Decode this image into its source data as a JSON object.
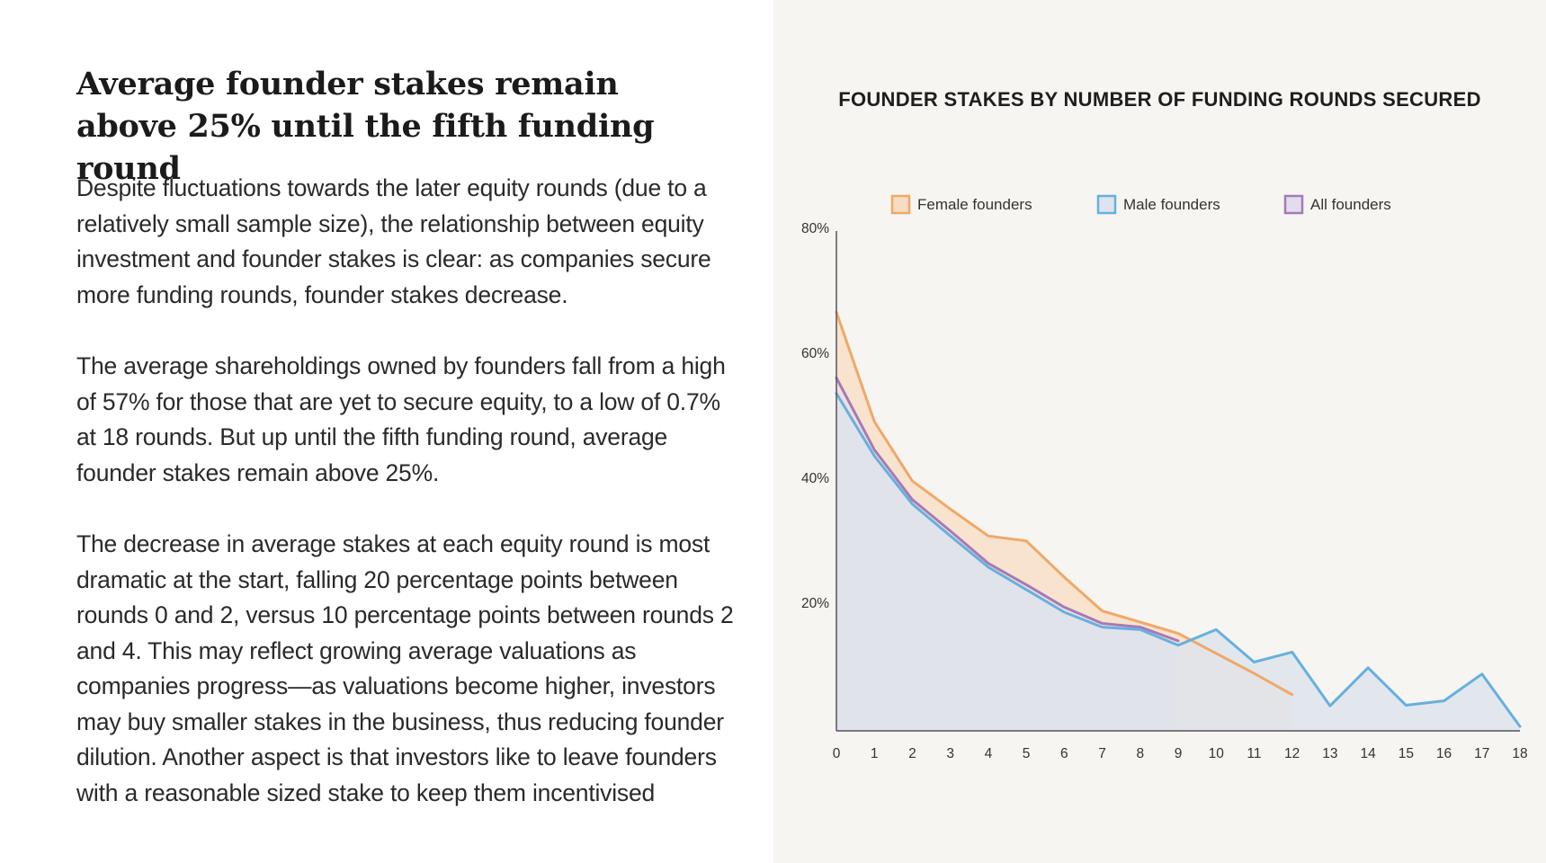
{
  "article": {
    "heading": "Average founder stakes remain above 25% until the fifth funding round",
    "paragraphs": [
      "Despite fluctuations towards the later equity rounds (due to a relatively small sample size), the relationship between equity investment and founder stakes is clear: as companies secure more funding rounds, founder stakes decrease.",
      "The average shareholdings owned by founders fall from a high of 57%  for those that are yet to secure equity, to a low of 0.7% at 18 rounds. But up until the fifth funding round, average founder stakes remain above 25%.",
      "The decrease in average stakes at each equity round is most dramatic at the start, falling 20 percentage points between rounds 0 and 2, versus 10 percentage points between rounds 2 and 4. This may reflect growing average valuations as companies progress—as valuations become higher, investors may buy smaller stakes in the business, thus reducing founder dilution. Another aspect is that investors like to leave founders with a reasonable sized stake to keep them incentivised"
    ]
  },
  "chart_data": {
    "type": "area",
    "title": "FOUNDER STAKES BY NUMBER OF FUNDING ROUNDS SECURED",
    "xlabel": "",
    "ylabel": "",
    "x": [
      0,
      1,
      2,
      3,
      4,
      5,
      6,
      7,
      8,
      9,
      10,
      11,
      12,
      13,
      14,
      15,
      16,
      17,
      18
    ],
    "x_ticks": [
      "0",
      "1",
      "2",
      "3",
      "4",
      "5",
      "6",
      "7",
      "8",
      "9",
      "10",
      "11",
      "12",
      "13",
      "14",
      "15",
      "16",
      "17",
      "18"
    ],
    "y_ticks": [
      20,
      40,
      60,
      80
    ],
    "y_tick_labels": [
      "20%",
      "40%",
      "60%",
      "80%"
    ],
    "ylim": [
      0,
      80
    ],
    "xlim": [
      0,
      18
    ],
    "grid": false,
    "legend_position": "top",
    "series": [
      {
        "name": "Female founders",
        "color": "#f0a868",
        "fill": "#f7dcc2",
        "x": [
          0,
          1,
          2,
          3,
          4,
          5,
          6,
          7,
          8,
          9,
          10,
          11,
          12
        ],
        "values": [
          67,
          49.5,
          40,
          35.5,
          31.2,
          30.4,
          24.6,
          19.2,
          17.4,
          15.6,
          12.4,
          9.2,
          5.8
        ]
      },
      {
        "name": "Male founders",
        "color": "#66b0de",
        "fill": "#dde4ee",
        "x": [
          0,
          1,
          2,
          3,
          4,
          5,
          6,
          7,
          8,
          9,
          10,
          11,
          12,
          13,
          14,
          15,
          16,
          17,
          18
        ],
        "values": [
          54,
          44,
          36.3,
          31.2,
          26.2,
          22.6,
          19,
          16.6,
          16.2,
          13.7,
          16.2,
          11,
          12.6,
          4,
          10.1,
          4.1,
          4.8,
          9.1,
          0.7
        ]
      },
      {
        "name": "All founders",
        "color": "#a47ab9",
        "fill": "#e4dcec",
        "x": [
          0,
          1,
          2,
          3,
          4,
          5,
          6,
          7,
          8,
          9
        ],
        "values": [
          56.5,
          45,
          37,
          32,
          26.8,
          23.4,
          19.8,
          17.2,
          16.6,
          14.4
        ]
      }
    ]
  }
}
